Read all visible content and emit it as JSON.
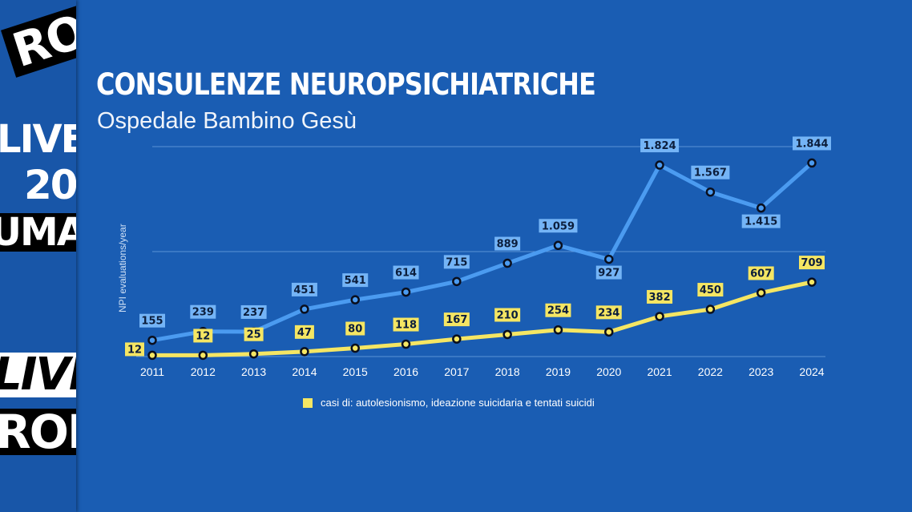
{
  "title": "CONSULENZE NEUROPSICHIATRICHE",
  "subtitle": "Ospedale Bambino Gesù",
  "side_logos": [
    "RO",
    "LIVE",
    "20",
    "UMA",
    "LIVE",
    "RON"
  ],
  "chart_data": {
    "type": "line",
    "ylabel": "NPI evaluations/year",
    "categories": [
      "2011",
      "2012",
      "2013",
      "2014",
      "2015",
      "2016",
      "2017",
      "2018",
      "2019",
      "2020",
      "2021",
      "2022",
      "2023",
      "2024"
    ],
    "ylim": [
      0,
      2000
    ],
    "gridlines": [
      1000,
      2000
    ],
    "grid": true,
    "legend_position": "bottom",
    "series": [
      {
        "values": [
          155,
          239,
          237,
          451,
          541,
          614,
          715,
          889,
          1059,
          927,
          1824,
          1567,
          1415,
          1844
        ],
        "labels": [
          "155",
          "239",
          "237",
          "451",
          "541",
          "614",
          "715",
          "889",
          "1.059",
          "927",
          "1.824",
          "1.567",
          "1.415",
          "1.844"
        ],
        "color": "#4b9bf0",
        "label_bg": "#74b4f6"
      },
      {
        "name": "casi di: autolesionismo, ideazione suicidaria e tentati suicidi",
        "values": [
          12,
          12,
          25,
          47,
          80,
          118,
          167,
          210,
          254,
          234,
          382,
          450,
          607,
          709
        ],
        "labels": [
          "12",
          "12",
          "25",
          "47",
          "80",
          "118",
          "167",
          "210",
          "254",
          "234",
          "382",
          "450",
          "607",
          "709"
        ],
        "color": "#f5e663",
        "label_bg": "#f5e663"
      }
    ]
  }
}
